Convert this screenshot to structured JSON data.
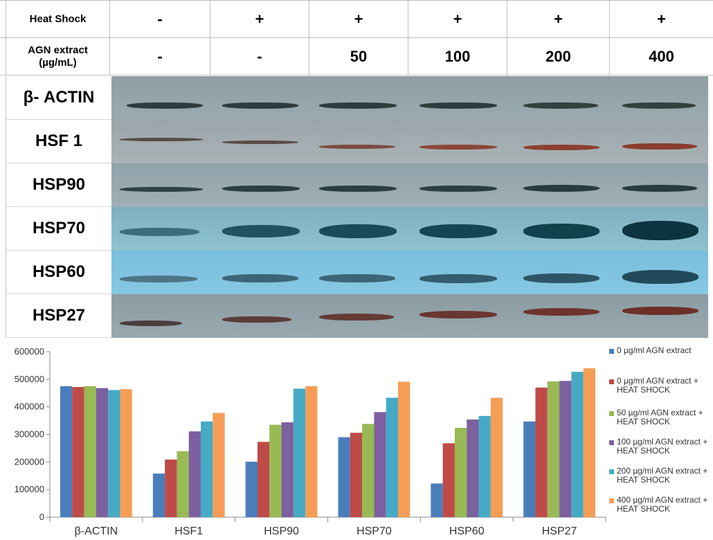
{
  "header": {
    "row1_label": "Heat Shock",
    "row1_values": [
      "-",
      "+",
      "+",
      "+",
      "+",
      "+"
    ],
    "row2_label": "AGN extract\n(µg/mL)",
    "row2_values": [
      "-",
      "-",
      "50",
      "100",
      "200",
      "400"
    ]
  },
  "blots": [
    {
      "label": "β- ACTIN"
    },
    {
      "label": "HSF 1"
    },
    {
      "label": "HSP90"
    },
    {
      "label": "HSP70"
    },
    {
      "label": "HSP60"
    },
    {
      "label": "HSP27"
    }
  ],
  "chart_data": {
    "type": "bar",
    "categories": [
      "β-ACTIN",
      "HSF1",
      "HSP90",
      "HSP70",
      "HSP60",
      "HSP27"
    ],
    "ylim": [
      0,
      600000
    ],
    "yticks": [
      "0",
      "100000",
      "200000",
      "300000",
      "400000",
      "500000",
      "600000"
    ],
    "legend_position": "right",
    "grid": false,
    "series": [
      {
        "name": "0 µg/ml AGN extract",
        "color": "#4a7ebb",
        "values": [
          475000,
          158000,
          201000,
          290000,
          122000,
          347000
        ]
      },
      {
        "name": "0 µg/ml AGN extract + HEAT SHOCK",
        "color": "#be4b48",
        "values": [
          472000,
          209000,
          273000,
          306000,
          268000,
          470000
        ]
      },
      {
        "name": "50 µg/ml AGN extract + HEAT SHOCK",
        "color": "#98b954",
        "values": [
          475000,
          239000,
          335000,
          338000,
          324000,
          492000
        ]
      },
      {
        "name": "100 µg/ml AGN extract + HEAT SHOCK",
        "color": "#7d60a0",
        "values": [
          468000,
          311000,
          344000,
          381000,
          354000,
          494000
        ]
      },
      {
        "name": "200 µg/ml AGN extract + HEAT SHOCK",
        "color": "#46aac5",
        "values": [
          461000,
          347000,
          466000,
          433000,
          367000,
          527000
        ]
      },
      {
        "name": "400 µg/ml AGN extract + HEAT SHOCK",
        "color": "#f59d56",
        "values": [
          464000,
          378000,
          475000,
          491000,
          433000,
          540000
        ]
      }
    ]
  }
}
